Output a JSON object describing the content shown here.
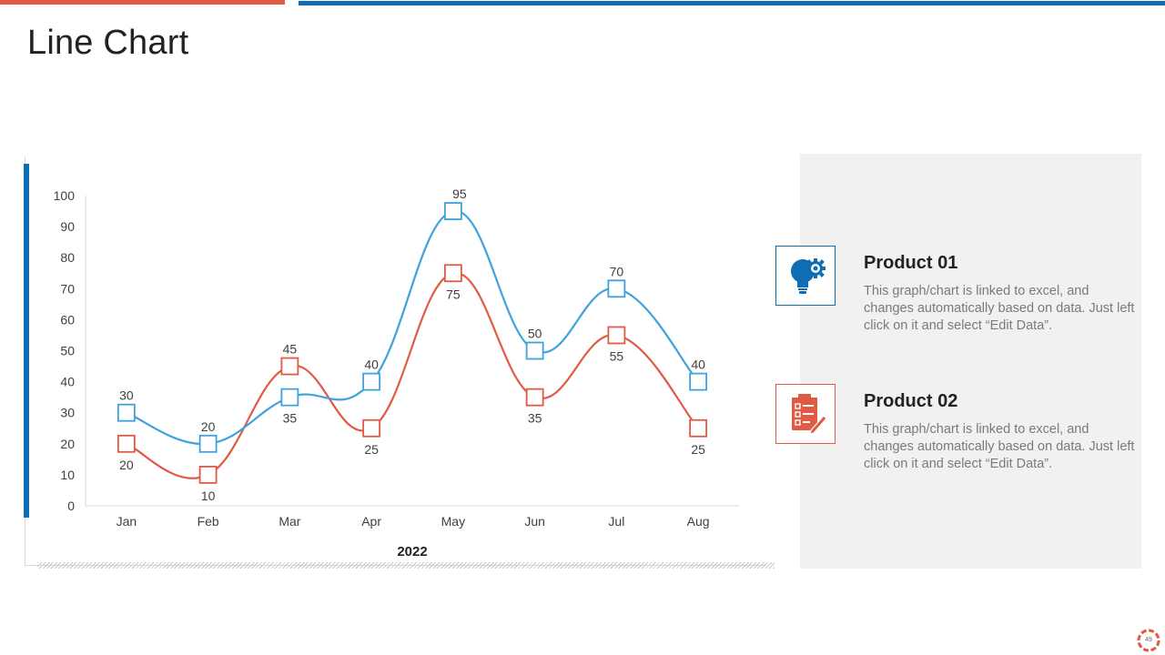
{
  "slide": {
    "title": "Line Chart",
    "page_number": "49"
  },
  "colors": {
    "accent_red": "#e05a44",
    "accent_blue": "#0f6db3",
    "series_product01": "#3fa2dc",
    "series_product02": "#e05a44",
    "panel_background": "#f1f1f1"
  },
  "chart_data": {
    "type": "line",
    "categories": [
      "Jan",
      "Feb",
      "Mar",
      "Apr",
      "May",
      "Jun",
      "Jul",
      "Aug"
    ],
    "series": [
      {
        "name": "Product 01",
        "values": [
          30,
          20,
          35,
          40,
          95,
          50,
          70,
          40
        ]
      },
      {
        "name": "Product 02",
        "values": [
          20,
          10,
          45,
          25,
          75,
          35,
          55,
          25
        ]
      }
    ],
    "xlabel": "2022",
    "ylabel": "",
    "ylim": [
      0,
      100
    ],
    "yticks": [
      0,
      10,
      20,
      30,
      40,
      50,
      60,
      70,
      80,
      90,
      100
    ],
    "marker": "square",
    "smooth": true,
    "grid": false,
    "data_labels": true
  },
  "products": [
    {
      "title": "Product 01",
      "description": "This graph/chart is linked to excel, and changes automatically based on data. Just left click on it and select “Edit Data”.",
      "icon": "lightbulb-gear-icon"
    },
    {
      "title": "Product 02",
      "description": "This graph/chart is linked to excel, and changes automatically based on data. Just left click on it and select “Edit Data”.",
      "icon": "checklist-pen-icon"
    }
  ]
}
